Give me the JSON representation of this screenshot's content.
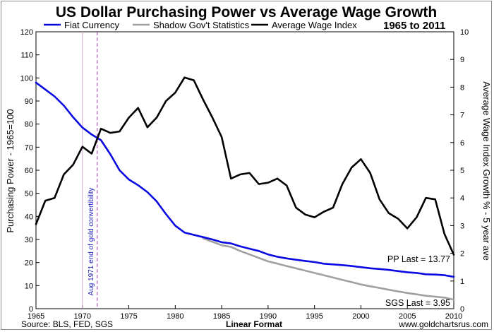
{
  "chart_data": {
    "type": "line",
    "title": "US Dollar Purchasing Power vs Average Wage Growth",
    "date_range": "1965 to 2011",
    "xlabel": "Linear Format",
    "ylabel_left": "Purchasing Power - 1965=100",
    "ylabel_right": "Average Wage Index Growth % - 5 year ave",
    "xlim": [
      1965,
      2010
    ],
    "ylim_left": [
      0,
      120
    ],
    "ylim_right": [
      0,
      10
    ],
    "x_ticks": [
      "1965",
      "1970",
      "1975",
      "1980",
      "1985",
      "1990",
      "1995",
      "2000",
      "2005",
      "2010"
    ],
    "y_left_ticks": [
      "0",
      "10",
      "20",
      "30",
      "40",
      "50",
      "60",
      "70",
      "80",
      "90",
      "100",
      "110",
      "120"
    ],
    "y_right_ticks": [
      "0",
      "1",
      "2",
      "3",
      "4",
      "5",
      "6",
      "7",
      "8",
      "9",
      "10"
    ],
    "grid": false,
    "legend_position": "top",
    "series": [
      {
        "name": "Fiat Currency",
        "axis": "left",
        "color": "#0a0ae0",
        "x": [
          1965,
          1966,
          1967,
          1968,
          1969,
          1970,
          1971,
          1972,
          1973,
          1974,
          1975,
          1976,
          1977,
          1978,
          1979,
          1980,
          1981,
          1982,
          1983,
          1984,
          1985,
          1986,
          1987,
          1988,
          1989,
          1990,
          1991,
          1992,
          1993,
          1994,
          1995,
          1996,
          1997,
          1998,
          1999,
          2000,
          2001,
          2002,
          2003,
          2004,
          2005,
          2006,
          2007,
          2008,
          2009,
          2010
        ],
        "values": [
          98,
          95,
          92,
          88,
          83,
          78.5,
          75.5,
          73,
          67,
          60,
          56,
          53.5,
          50.5,
          46.5,
          41,
          36,
          33,
          32,
          31,
          30,
          28.8,
          28.3,
          27,
          26,
          25,
          23.5,
          22.5,
          21.8,
          21.2,
          20.7,
          20.2,
          19.5,
          19.2,
          18.9,
          18.5,
          18,
          17.5,
          17.2,
          16.8,
          16.3,
          15.8,
          15.5,
          14.9,
          14.8,
          14.5,
          13.8
        ]
      },
      {
        "name": "Shadow Gov't Statistics",
        "axis": "left",
        "color": "#a0a0a0",
        "x": [
          1983,
          1984,
          1985,
          1986,
          1987,
          1988,
          1989,
          1990,
          1991,
          1992,
          1993,
          1994,
          1995,
          1996,
          1997,
          1998,
          1999,
          2000,
          2001,
          2002,
          2003,
          2004,
          2005,
          2006,
          2007,
          2008,
          2009,
          2010
        ],
        "values": [
          30.5,
          29,
          27.5,
          26.8,
          25,
          23.5,
          22,
          20.5,
          19.5,
          18.5,
          17.5,
          16.5,
          15.5,
          14.5,
          13.5,
          12.5,
          11.5,
          10.5,
          9.7,
          9,
          8.2,
          7.5,
          6.8,
          6.2,
          5.6,
          5.2,
          4.8,
          3.95
        ]
      },
      {
        "name": "Average Wage Index",
        "axis": "right",
        "color": "#000000",
        "x": [
          1965,
          1966,
          1967,
          1968,
          1969,
          1970,
          1971,
          1972,
          1973,
          1974,
          1975,
          1976,
          1977,
          1978,
          1979,
          1980,
          1981,
          1982,
          1983,
          1984,
          1985,
          1986,
          1987,
          1988,
          1989,
          1990,
          1991,
          1992,
          1993,
          1994,
          1995,
          1996,
          1997,
          1998,
          1999,
          2000,
          2001,
          2002,
          2003,
          2004,
          2005,
          2006,
          2007,
          2008,
          2009,
          2010
        ],
        "values": [
          3.05,
          3.9,
          4.0,
          4.85,
          5.2,
          5.85,
          5.6,
          6.5,
          6.35,
          6.4,
          6.9,
          7.25,
          6.55,
          6.9,
          7.5,
          7.8,
          8.35,
          8.25,
          7.55,
          6.9,
          6.2,
          4.7,
          4.85,
          4.9,
          4.5,
          4.55,
          4.7,
          4.45,
          3.65,
          3.4,
          3.3,
          3.5,
          3.65,
          4.5,
          5.1,
          5.4,
          4.9,
          3.95,
          3.45,
          3.25,
          2.9,
          3.3,
          4.0,
          3.95,
          2.7,
          1.95
        ]
      }
    ],
    "annotations": {
      "gold": {
        "year": 1971,
        "text": "Aug 1971 end of gold convertibility",
        "color": "#b040c0"
      },
      "marker_line": {
        "year": 1970,
        "color": "#d8a8d8"
      },
      "pp_last": "PP Last = 13.77",
      "sgs_last": "SGS Last = 3.95"
    },
    "footer": {
      "source": "Source: BLS, FED, SGS",
      "website": "www.goldchartsrus.com"
    }
  }
}
